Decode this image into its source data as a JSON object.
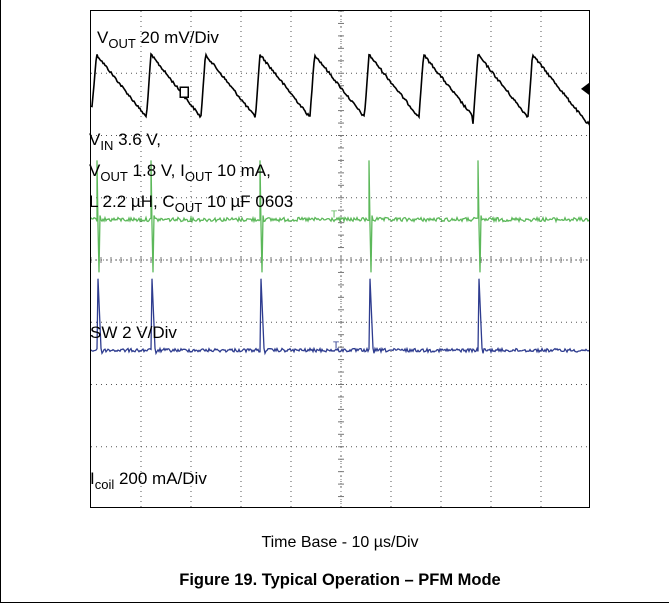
{
  "chart_data": {
    "type": "line",
    "title": "",
    "xlabel": "Time Base - 10 µs/Div",
    "ylabel": "",
    "x_divisions": 10,
    "y_divisions": 8,
    "grid": true,
    "x_unit": "µs",
    "x_range": [
      0,
      100
    ],
    "period_us": 10.9,
    "first_event_us": 1.1,
    "pulses_per_trace": 9,
    "series": [
      {
        "name": "VOUT",
        "label_main": "V",
        "label_sub": "OUT",
        "label_rest": " 20 mV/Div",
        "color": "#000000",
        "waveform": "sawtooth",
        "ripple_mV": 40,
        "baseline_div": 0.7
      },
      {
        "name": "SW",
        "label_main": "SW 2 V/Div",
        "label_sub": "",
        "label_rest": "",
        "color": "#5cb85a",
        "waveform": "switching pulses",
        "baseline_div": 3.35,
        "spike_up_div": 0.95,
        "spike_down_div": 0.85
      },
      {
        "name": "Icoil",
        "label_main": "I",
        "label_sub": "coil",
        "label_rest": " 200 mA/Div",
        "color": "#2e3c8f",
        "waveform": "current pulses",
        "baseline_div": 5.45,
        "peak_div": 1.15
      }
    ],
    "conditions": [
      {
        "main": "V",
        "sub": "IN",
        "rest": " 3.6 V,"
      },
      {
        "main": "V",
        "sub": "OUT",
        "rest": " 1.8 V, I",
        "sub2": "OUT",
        "rest2": " 10 mA,"
      },
      {
        "main": "L  2.2 µH, C",
        "sub": "OUT",
        "rest": " 10 µF 0603"
      }
    ]
  },
  "figure": {
    "caption": "Figure 19. Typical Operation – PFM Mode"
  }
}
